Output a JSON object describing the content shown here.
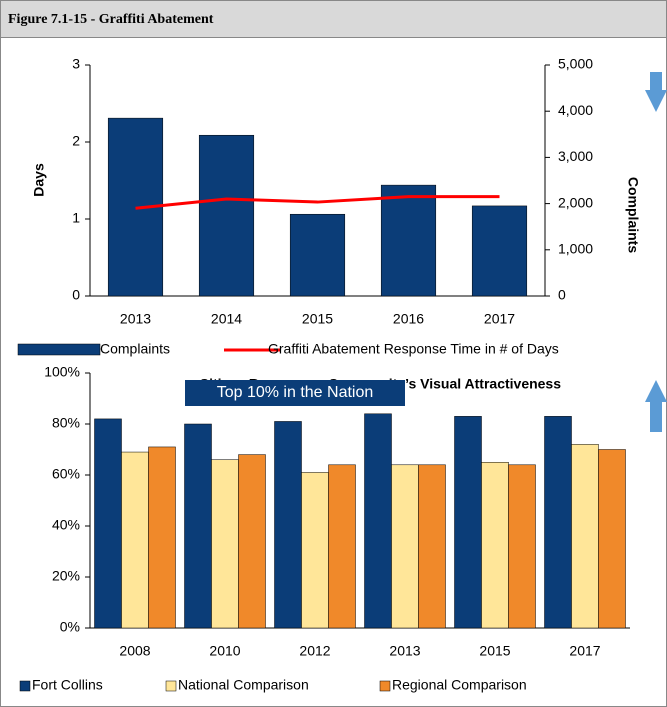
{
  "figure_title": "Figure 7.1-15 - Graffiti Abatement",
  "chart_data": [
    {
      "type": "combo",
      "categories": [
        "2013",
        "2014",
        "2015",
        "2016",
        "2017"
      ],
      "ylabel": "Days",
      "y2label": "Complaints",
      "ylim": [
        0,
        3
      ],
      "yticks": [
        0,
        1,
        2,
        3
      ],
      "y2lim": [
        0,
        5000
      ],
      "y2ticks": [
        0,
        {
          "value": 1000,
          "label": "1,000"
        },
        {
          "value": 2000,
          "label": "2,000"
        },
        {
          "value": 3000,
          "label": "3,000"
        },
        {
          "value": 4000,
          "label": "4,000"
        },
        {
          "value": 5000,
          "label": "5,000"
        }
      ],
      "series": [
        {
          "name": "Complaints",
          "kind": "bar",
          "axis": "y2",
          "color": "#0b3d78",
          "values": [
            3850,
            3480,
            1770,
            2400,
            1950
          ]
        },
        {
          "name": "Graffiti Abatement  Response Time in # of Days",
          "kind": "line",
          "axis": "y",
          "color": "#ff0000",
          "values": [
            1.14,
            1.26,
            1.22,
            1.29,
            1.29
          ]
        }
      ],
      "legend": "bottom"
    },
    {
      "type": "grouped-bar",
      "title": "Citizen Response - Community’s Visual Attractiveness",
      "annotation": "Top 10% in the Nation",
      "categories": [
        "2008",
        "2010",
        "2012",
        "2013",
        "2015",
        "2017"
      ],
      "ylim": [
        0,
        100
      ],
      "yticks": [
        {
          "value": 0,
          "label": "0%"
        },
        {
          "value": 20,
          "label": "20%"
        },
        {
          "value": 40,
          "label": "40%"
        },
        {
          "value": 60,
          "label": "60%"
        },
        {
          "value": 80,
          "label": "80%"
        },
        {
          "value": 100,
          "label": "100%"
        }
      ],
      "series": [
        {
          "name": "Fort Collins",
          "color": "#0b3d78",
          "values": [
            82,
            80,
            81,
            84,
            83,
            83
          ]
        },
        {
          "name": "National  Comparison",
          "color": "#ffe699",
          "values": [
            69,
            66,
            61,
            64,
            65,
            72
          ]
        },
        {
          "name": "Regional  Comparison",
          "color": "#f0892a",
          "values": [
            71,
            68,
            64,
            64,
            64,
            70
          ]
        }
      ],
      "legend": "bottom"
    }
  ]
}
